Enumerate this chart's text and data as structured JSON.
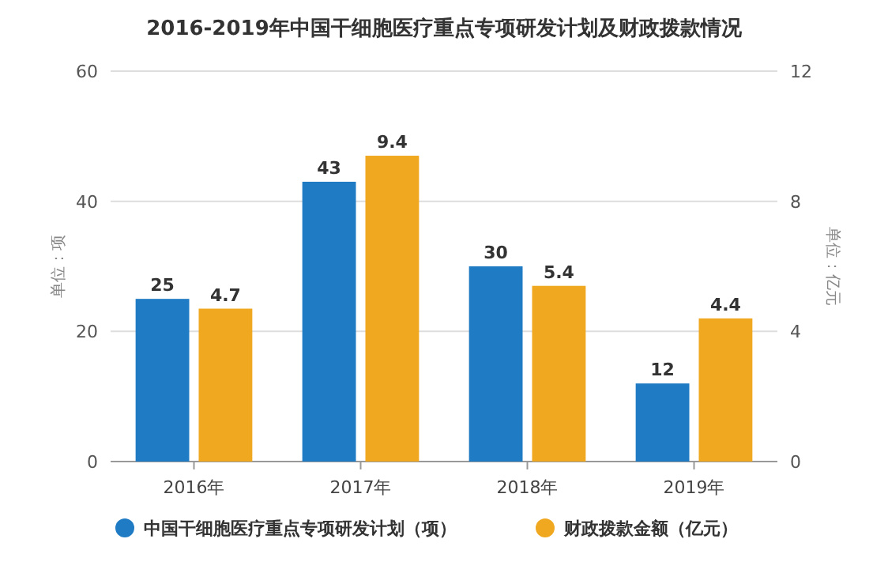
{
  "chart_data": {
    "type": "bar",
    "title": "2016-2019年中国干细胞医疗重点专项研发计划及财政拨款情况",
    "categories": [
      "2016年",
      "2017年",
      "2018年",
      "2019年"
    ],
    "series": [
      {
        "name": "中国干细胞医疗重点专项研发计划（项）",
        "color": "#1f7bc4",
        "values": [
          25,
          43,
          30,
          12
        ]
      },
      {
        "name": "财政拨款金额（亿元）",
        "color": "#f0a820",
        "values": [
          4.7,
          9.4,
          5.4,
          4.4
        ],
        "axis": "y2"
      }
    ],
    "ylabel": "单位：项",
    "y2label": "单位：亿元",
    "ylim": [
      0,
      60
    ],
    "yticks": [
      0,
      20,
      40,
      60
    ],
    "y2lim": [
      0,
      12
    ],
    "y2ticks": [
      0,
      4,
      8,
      12
    ],
    "grid": "y",
    "legend": "bottom",
    "data_labels": true
  }
}
